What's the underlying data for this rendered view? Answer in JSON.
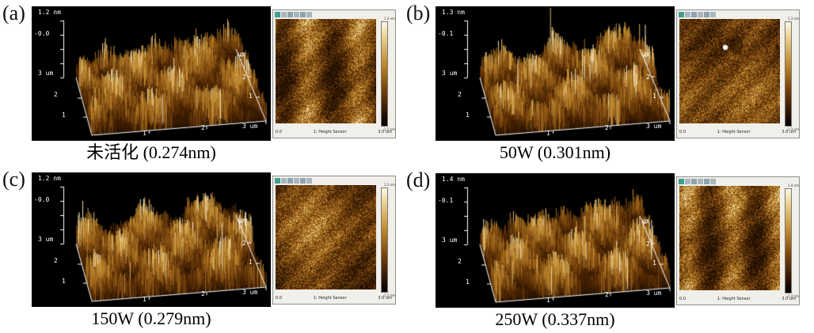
{
  "colors": {
    "plot_background": "#000000",
    "surface_shadow": "#1c0d00",
    "surface_mid": "#9a611a",
    "surface_highlight": "#f7ecc8",
    "axis_text": "#ffffff"
  },
  "panels": [
    {
      "tag": "(a)",
      "caption": "未活化 (0.274nm)",
      "plot3d": {
        "z_top": "1.2 nm",
        "z_mid": "-0.0",
        "y_max": "3 um",
        "y_ticks": [
          "2",
          "1"
        ],
        "x_ticks": [
          "1",
          "2"
        ],
        "x_end": "3 um",
        "r_unit": "um",
        "r_ticks": [
          "2",
          "1"
        ]
      },
      "image2d": {
        "cb_top": "1.2 nm",
        "cb_bottom": "-1.2 nm",
        "s_left": "0.0",
        "s_center": "1: Height Sensor",
        "s_right": "3.0 um"
      }
    },
    {
      "tag": "(b)",
      "caption": "50W (0.301nm)",
      "plot3d": {
        "z_top": "1.3 nm",
        "z_mid": "-0.1",
        "y_max": "3 um",
        "y_ticks": [
          "2",
          "1"
        ],
        "x_ticks": [
          "1",
          "2"
        ],
        "x_end": "3 um",
        "r_unit": "um",
        "r_ticks": [
          "2",
          "1"
        ]
      },
      "image2d": {
        "cb_top": "1.3 nm",
        "cb_bottom": "-1.3 nm",
        "s_left": "0.0",
        "s_center": "1: Height Sensor",
        "s_right": "3.0 um"
      }
    },
    {
      "tag": "(c)",
      "caption": "150W (0.279nm)",
      "plot3d": {
        "z_top": "1.2 nm",
        "z_mid": "-0.0",
        "y_max": "3 um",
        "y_ticks": [
          "2",
          "1"
        ],
        "x_ticks": [
          "1",
          "2"
        ],
        "x_end": "3 um",
        "r_unit": "um",
        "r_ticks": [
          "2",
          "1"
        ]
      },
      "image2d": {
        "cb_top": "1.2 nm",
        "cb_bottom": "-1.2 nm",
        "s_left": "0.0",
        "s_center": "1: Height Sensor",
        "s_right": "3.0 um"
      }
    },
    {
      "tag": "(d)",
      "caption": "250W (0.337nm)",
      "plot3d": {
        "z_top": "1.4 nm",
        "z_mid": "-0.1",
        "y_max": "3 um",
        "y_ticks": [
          "2",
          "1"
        ],
        "x_ticks": [
          "1",
          "2"
        ],
        "x_end": "3 um",
        "r_unit": "um",
        "r_ticks": [
          "2",
          "1"
        ]
      },
      "image2d": {
        "cb_top": "1.4 nm",
        "cb_bottom": "-1.4 nm",
        "s_left": "0.0",
        "s_center": "1: Height Sensor",
        "s_right": "3.0 um"
      }
    }
  ]
}
